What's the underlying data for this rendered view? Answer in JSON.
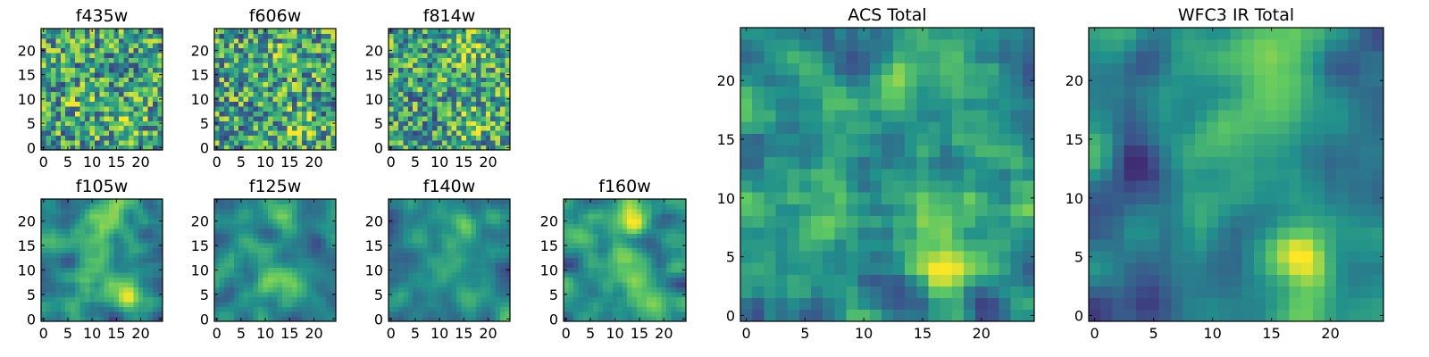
{
  "colormap": {
    "name": "viridis",
    "stops": [
      "#440154",
      "#3b528b",
      "#21918c",
      "#5ec962",
      "#fde725"
    ]
  },
  "chart_data": [
    {
      "type": "heatmap",
      "title": "f435w",
      "grid": [
        25,
        25
      ],
      "xlim": [
        0,
        24
      ],
      "ylim": [
        0,
        24
      ],
      "xticks": [
        0,
        5,
        10,
        15,
        20
      ],
      "yticks": [
        0,
        5,
        10,
        15,
        20
      ],
      "pattern": "noisy",
      "seed": 11,
      "peaks": [
        {
          "x": 17,
          "y": 5,
          "sigma": 2,
          "amp": 0.25
        },
        {
          "x": 8,
          "y": 9,
          "sigma": 2,
          "amp": 0.12
        }
      ]
    },
    {
      "type": "heatmap",
      "title": "f606w",
      "grid": [
        25,
        25
      ],
      "xlim": [
        0,
        24
      ],
      "ylim": [
        0,
        24
      ],
      "xticks": [
        0,
        5,
        10,
        15,
        20
      ],
      "yticks": [
        0,
        5,
        10,
        15,
        20
      ],
      "pattern": "noisy",
      "seed": 22,
      "peaks": [
        {
          "x": 17,
          "y": 5,
          "sigma": 2,
          "amp": 0.3
        },
        {
          "x": 14,
          "y": 19,
          "sigma": 2.5,
          "amp": 0.1
        }
      ]
    },
    {
      "type": "heatmap",
      "title": "f814w",
      "grid": [
        25,
        25
      ],
      "xlim": [
        0,
        24
      ],
      "ylim": [
        0,
        24
      ],
      "xticks": [
        0,
        5,
        10,
        15,
        20
      ],
      "yticks": [
        0,
        5,
        10,
        15,
        20
      ],
      "pattern": "noisy",
      "seed": 33,
      "peaks": [
        {
          "x": 17,
          "y": 5,
          "sigma": 2,
          "amp": 0.28
        },
        {
          "x": 15,
          "y": 20,
          "sigma": 2.5,
          "amp": 0.2
        }
      ]
    },
    {
      "type": "heatmap",
      "title": "f105w",
      "grid": [
        25,
        25
      ],
      "xlim": [
        0,
        24
      ],
      "ylim": [
        0,
        24
      ],
      "xticks": [
        0,
        5,
        10,
        15,
        20
      ],
      "yticks": [
        0,
        5,
        10,
        15,
        20
      ],
      "pattern": "smooth",
      "seed": 44,
      "peaks": [
        {
          "x": 17,
          "y": 5,
          "sigma": 2.2,
          "amp": 0.35
        },
        {
          "x": 14,
          "y": 20,
          "sigma": 2.5,
          "amp": 0.3
        },
        {
          "x": 11,
          "y": 11,
          "sigma": 3,
          "amp": 0.15
        }
      ]
    },
    {
      "type": "heatmap",
      "title": "f125w",
      "grid": [
        25,
        25
      ],
      "xlim": [
        0,
        24
      ],
      "ylim": [
        0,
        24
      ],
      "xticks": [
        0,
        5,
        10,
        15,
        20
      ],
      "yticks": [
        0,
        5,
        10,
        15,
        20
      ],
      "pattern": "smooth",
      "seed": 55,
      "peaks": [
        {
          "x": 17,
          "y": 5,
          "sigma": 2.2,
          "amp": 0.32
        },
        {
          "x": 14,
          "y": 20,
          "sigma": 2.5,
          "amp": 0.28
        },
        {
          "x": 11,
          "y": 12,
          "sigma": 3,
          "amp": 0.15
        }
      ]
    },
    {
      "type": "heatmap",
      "title": "f140w",
      "grid": [
        25,
        25
      ],
      "xlim": [
        0,
        24
      ],
      "ylim": [
        0,
        24
      ],
      "xticks": [
        0,
        5,
        10,
        15,
        20
      ],
      "yticks": [
        0,
        5,
        10,
        15,
        20
      ],
      "pattern": "smooth",
      "seed": 66,
      "peaks": [
        {
          "x": 17,
          "y": 5,
          "sigma": 2.2,
          "amp": 0.3
        },
        {
          "x": 15,
          "y": 20,
          "sigma": 2.5,
          "amp": 0.32
        },
        {
          "x": 11,
          "y": 11,
          "sigma": 3,
          "amp": 0.15
        }
      ]
    },
    {
      "type": "heatmap",
      "title": "f160w",
      "grid": [
        25,
        25
      ],
      "xlim": [
        0,
        24
      ],
      "ylim": [
        0,
        24
      ],
      "xticks": [
        0,
        5,
        10,
        15,
        20
      ],
      "yticks": [
        0,
        5,
        10,
        15,
        20
      ],
      "pattern": "smooth",
      "seed": 77,
      "peaks": [
        {
          "x": 17,
          "y": 5,
          "sigma": 2.2,
          "amp": 0.33
        },
        {
          "x": 14,
          "y": 20,
          "sigma": 2.5,
          "amp": 0.33
        },
        {
          "x": 11,
          "y": 11,
          "sigma": 3,
          "amp": 0.15
        }
      ]
    },
    {
      "type": "heatmap",
      "title": "ACS Total",
      "grid": [
        25,
        25
      ],
      "xlim": [
        0,
        24
      ],
      "ylim": [
        0,
        24
      ],
      "xticks": [
        0,
        5,
        10,
        15,
        20
      ],
      "yticks": [
        0,
        5,
        10,
        15,
        20
      ],
      "pattern": "medium",
      "seed": 88,
      "peaks": [
        {
          "x": 17,
          "y": 5,
          "sigma": 1.8,
          "amp": 0.45
        },
        {
          "x": 15,
          "y": 21,
          "sigma": 2.2,
          "amp": 0.25
        },
        {
          "x": 8,
          "y": 9,
          "sigma": 1.8,
          "amp": 0.2
        }
      ]
    },
    {
      "type": "heatmap",
      "title": "WFC3 IR Total",
      "grid": [
        25,
        25
      ],
      "xlim": [
        0,
        24
      ],
      "ylim": [
        0,
        24
      ],
      "xticks": [
        0,
        5,
        10,
        15,
        20
      ],
      "yticks": [
        0,
        5,
        10,
        15,
        20
      ],
      "pattern": "smooth",
      "seed": 99,
      "peaks": [
        {
          "x": 17,
          "y": 5,
          "sigma": 2.0,
          "amp": 0.45
        },
        {
          "x": 14,
          "y": 21,
          "sigma": 2.5,
          "amp": 0.4
        },
        {
          "x": 12,
          "y": 12,
          "sigma": 3.5,
          "amp": 0.2
        }
      ],
      "dips": [
        {
          "x": 3,
          "y": 13,
          "sigma": 1.5,
          "amp": 0.35
        },
        {
          "x": 4,
          "y": 2,
          "sigma": 2,
          "amp": 0.3
        }
      ]
    }
  ]
}
